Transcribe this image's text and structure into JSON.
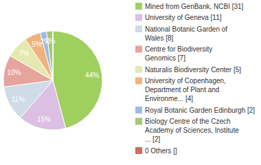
{
  "chart_data": {
    "type": "pie",
    "categories": [
      "Mined from GenBank, NCBI [31]",
      "University of Geneva [11]",
      "National Botanic Garden of\nWales [8]",
      "Centre for Biodiversity\nGenomics [7]",
      "Naturalis Biodiversity Center [5]",
      "University of Copenhagen,\nDepartment of Plant and\nEnvironme... [4]",
      "Royal Botanic Garden Edinburgh [2]",
      "Biology Centre of the Czech\nAcademy of Sciences, Institute\n... [2]",
      "0 Others []"
    ],
    "values": [
      44,
      15,
      11,
      10,
      7,
      5,
      2,
      2,
      0
    ],
    "value_labels": [
      "44%",
      "15%",
      "11%",
      "10%",
      "7%",
      "5%",
      "2%",
      "2%",
      null
    ],
    "colors": [
      "#9fd05f",
      "#dcbfe3",
      "#cfdbe7",
      "#e5a59c",
      "#e5e9b0",
      "#f0b27b",
      "#9dbbe1",
      "#a5c872",
      "#d36a5a"
    ],
    "data_labels": true,
    "legend": "right"
  }
}
